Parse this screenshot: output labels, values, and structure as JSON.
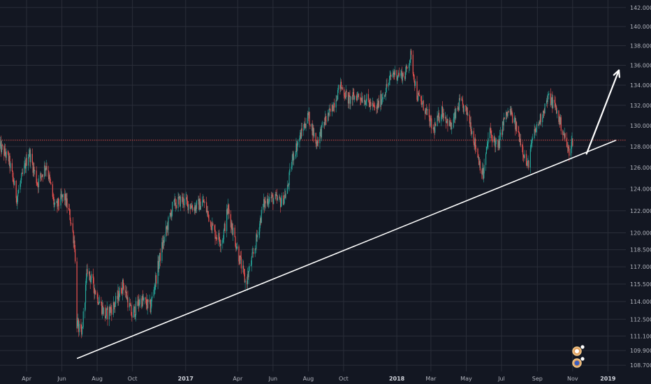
{
  "chart_data": {
    "type": "candlestick",
    "colors": {
      "background": "#131722",
      "grid": "#2a2e39",
      "up": "#26a69a",
      "down": "#ef5350",
      "trendline": "#ffffff",
      "price_line": "#ef5350",
      "axis_text": "#b2b5be"
    },
    "y_ticks": [
      "142.000",
      "140.000",
      "138.000",
      "136.000",
      "134.000",
      "132.000",
      "130.000",
      "128.000",
      "126.000",
      "124.000",
      "122.000",
      "120.000",
      "118.500",
      "117.000",
      "115.500",
      "114.000",
      "112.500",
      "111.100",
      "109.900",
      "108.700"
    ],
    "y_tick_values": [
      142.0,
      140.0,
      138.0,
      136.0,
      134.0,
      132.0,
      130.0,
      128.0,
      126.0,
      124.0,
      122.0,
      120.0,
      118.5,
      117.0,
      115.5,
      114.0,
      112.5,
      111.1,
      109.9,
      108.7
    ],
    "ylim": [
      108.2,
      142.8
    ],
    "y_scale": "log",
    "x_ticks": [
      {
        "label": "Apr",
        "date": "2016-04-01",
        "bold": false
      },
      {
        "label": "Jun",
        "date": "2016-06-01",
        "bold": false
      },
      {
        "label": "Aug",
        "date": "2016-08-01",
        "bold": false
      },
      {
        "label": "Oct",
        "date": "2016-10-01",
        "bold": false
      },
      {
        "label": "2017",
        "date": "2017-01-01",
        "bold": true
      },
      {
        "label": "Apr",
        "date": "2017-04-01",
        "bold": false
      },
      {
        "label": "Jun",
        "date": "2017-06-01",
        "bold": false
      },
      {
        "label": "Aug",
        "date": "2017-08-01",
        "bold": false
      },
      {
        "label": "Oct",
        "date": "2017-10-01",
        "bold": false
      },
      {
        "label": "2018",
        "date": "2018-01-01",
        "bold": true
      },
      {
        "label": "Mar",
        "date": "2018-03-01",
        "bold": false
      },
      {
        "label": "May",
        "date": "2018-05-01",
        "bold": false
      },
      {
        "label": "Jul",
        "date": "2018-07-01",
        "bold": false
      },
      {
        "label": "Sep",
        "date": "2018-09-01",
        "bold": false
      },
      {
        "label": "Nov",
        "date": "2018-11-01",
        "bold": false
      },
      {
        "label": "2019",
        "date": "2019-01-01",
        "bold": true
      }
    ],
    "xlim": [
      "2016-02-15",
      "2019-02-01"
    ],
    "price_key_points": [
      [
        "2016-02-15",
        128.0
      ],
      [
        "2016-03-01",
        126.8
      ],
      [
        "2016-03-15",
        123.2
      ],
      [
        "2016-04-05",
        127.5
      ],
      [
        "2016-04-20",
        124.5
      ],
      [
        "2016-05-05",
        126.3
      ],
      [
        "2016-05-20",
        122.2
      ],
      [
        "2016-06-05",
        123.4
      ],
      [
        "2016-06-15",
        121.5
      ],
      [
        "2016-06-23",
        119.0
      ],
      [
        "2016-06-27",
        112.2
      ],
      [
        "2016-07-05",
        111.0
      ],
      [
        "2016-07-15",
        116.8
      ],
      [
        "2016-08-01",
        114.5
      ],
      [
        "2016-08-15",
        112.8
      ],
      [
        "2016-09-01",
        113.8
      ],
      [
        "2016-09-15",
        115.5
      ],
      [
        "2016-09-30",
        112.8
      ],
      [
        "2016-10-15",
        114.2
      ],
      [
        "2016-11-01",
        113.5
      ],
      [
        "2016-11-20",
        118.5
      ],
      [
        "2016-12-10",
        122.5
      ],
      [
        "2016-12-25",
        123.0
      ],
      [
        "2017-01-15",
        122.3
      ],
      [
        "2017-02-01",
        122.8
      ],
      [
        "2017-02-20",
        120.0
      ],
      [
        "2017-03-05",
        119.2
      ],
      [
        "2017-03-15",
        122.2
      ],
      [
        "2017-03-30",
        118.8
      ],
      [
        "2017-04-15",
        115.5
      ],
      [
        "2017-04-30",
        118.5
      ],
      [
        "2017-05-15",
        122.5
      ],
      [
        "2017-05-25",
        123.2
      ],
      [
        "2017-06-05",
        123.0
      ],
      [
        "2017-06-15",
        122.8
      ],
      [
        "2017-06-25",
        123.7
      ],
      [
        "2017-07-05",
        127.0
      ],
      [
        "2017-07-20",
        129.3
      ],
      [
        "2017-08-01",
        131.0
      ],
      [
        "2017-08-15",
        128.3
      ],
      [
        "2017-08-30",
        130.5
      ],
      [
        "2017-09-10",
        131.5
      ],
      [
        "2017-09-25",
        134.0
      ],
      [
        "2017-10-10",
        132.5
      ],
      [
        "2017-10-25",
        133.0
      ],
      [
        "2017-11-10",
        132.5
      ],
      [
        "2017-11-25",
        131.5
      ],
      [
        "2017-12-10",
        133.2
      ],
      [
        "2017-12-25",
        135.2
      ],
      [
        "2018-01-15",
        135.0
      ],
      [
        "2018-01-25",
        137.0
      ],
      [
        "2018-02-05",
        133.0
      ],
      [
        "2018-02-20",
        131.5
      ],
      [
        "2018-03-05",
        129.5
      ],
      [
        "2018-03-20",
        131.5
      ],
      [
        "2018-04-05",
        129.8
      ],
      [
        "2018-04-20",
        132.3
      ],
      [
        "2018-05-05",
        131.0
      ],
      [
        "2018-05-15",
        128.5
      ],
      [
        "2018-05-30",
        125.2
      ],
      [
        "2018-06-10",
        129.5
      ],
      [
        "2018-06-25",
        127.8
      ],
      [
        "2018-07-05",
        130.5
      ],
      [
        "2018-07-15",
        131.5
      ],
      [
        "2018-08-01",
        129.0
      ],
      [
        "2018-08-15",
        126.0
      ],
      [
        "2018-08-25",
        129.0
      ],
      [
        "2018-09-05",
        130.5
      ],
      [
        "2018-09-20",
        132.8
      ],
      [
        "2018-10-01",
        132.0
      ],
      [
        "2018-10-15",
        129.5
      ],
      [
        "2018-10-25",
        127.5
      ],
      [
        "2018-11-01",
        128.6
      ]
    ],
    "current_price": 128.6,
    "trendline": {
      "start": [
        "2016-06-27",
        109.25
      ],
      "end": [
        "2019-01-15",
        128.6
      ]
    },
    "arrow": {
      "start": [
        "2018-11-25",
        127.3
      ],
      "end": [
        "2019-01-20",
        135.5
      ]
    }
  },
  "icons": [
    "event-marker-icon-1",
    "event-marker-icon-2"
  ]
}
